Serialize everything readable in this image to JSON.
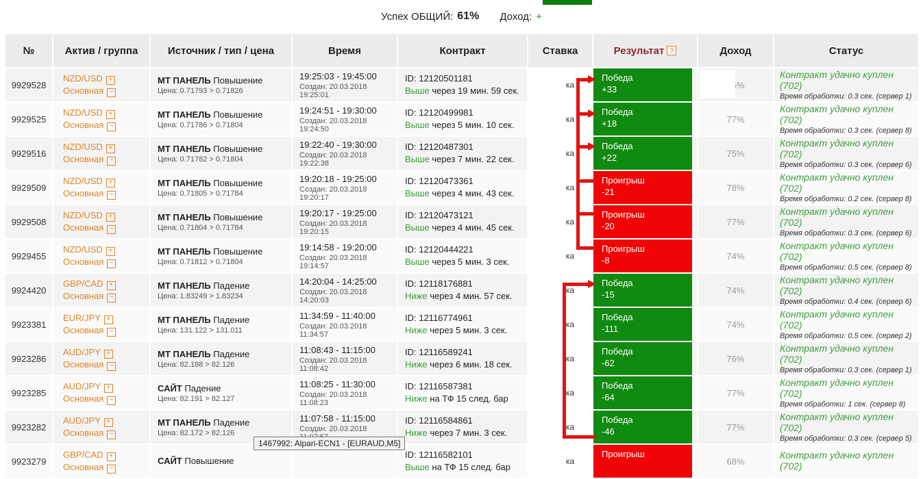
{
  "topbar": {
    "success_label": "Успех ОБЩИЙ:",
    "success_value": "61%",
    "income_label": "Доход:",
    "income_value": "+"
  },
  "icons": {
    "expand": "+",
    "collapse": "−",
    "help": "?"
  },
  "colors": {
    "win_green": "#108a10",
    "loss_red": "#ef0505",
    "link_orange": "#dd8427",
    "status_green": "#3f9e3f",
    "annotation_red": "#e31212",
    "result_header_maroon": "#8b2a2a"
  },
  "tooltip": {
    "text": "1467992: Alpari-ECN1 - [EURAUD,M5]"
  },
  "table": {
    "columns": [
      "№",
      "Актив / группа",
      "Источник / тип / цена",
      "Время",
      "Контракт",
      "Ставка",
      "Результат",
      "Доход",
      "Статус"
    ],
    "rows": [
      {
        "number": "9929528",
        "asset": "NZD/USD",
        "group": "Основная",
        "source": "МТ ПАНЕЛЬ",
        "move": "Повышение",
        "price": "Цена: 0.71793 > 0.71826",
        "time_range": "19:25:03 - 19:45:00",
        "created": "Создан: 20.03.2018 19:25:01",
        "contract_id": "ID: 12120501181",
        "direction": "Выше",
        "contract_tail": "через 19 мин. 59 сек.",
        "stake_fragment": "ка",
        "result_label": "Победа",
        "result_value": "+33",
        "result_kind": "win",
        "income": "75%",
        "income_overlay": true,
        "status": "Контракт удачно куплен (702)",
        "status_sub": "Время обработки: 0.3 сек. (сервер 1)"
      },
      {
        "number": "9929525",
        "asset": "NZD/USD",
        "group": "Основная",
        "source": "МТ ПАНЕЛЬ",
        "move": "Повышение",
        "price": "Цена: 0.71786 > 0.71804",
        "time_range": "19:24:51 - 19:30:00",
        "created": "Создан: 20.03.2018 19:24:50",
        "contract_id": "ID: 12120499981",
        "direction": "Выше",
        "contract_tail": "через 5 мин. 10 сек.",
        "stake_fragment": "ка",
        "result_label": "Победа",
        "result_value": "+18",
        "result_kind": "win",
        "income": "77%",
        "income_overlay": false,
        "status": "Контракт удачно куплен (702)",
        "status_sub": "Время обработки: 0.3 сек. (сервер 8)"
      },
      {
        "number": "9929516",
        "asset": "NZD/USD",
        "group": "Основная",
        "source": "МТ ПАНЕЛЬ",
        "move": "Повышение",
        "price": "Цена: 0.71782 > 0.71804",
        "time_range": "19:22:40 - 19:30:00",
        "created": "Создан: 20.03.2018 19:22:38",
        "contract_id": "ID: 12120487301",
        "direction": "Выше",
        "contract_tail": "через 7 мин. 22 сек.",
        "stake_fragment": "ка",
        "result_label": "Победа",
        "result_value": "+22",
        "result_kind": "win",
        "income": "75%",
        "income_overlay": false,
        "status": "Контракт удачно куплен (702)",
        "status_sub": "Время обработки: 0.3 сек. (сервер 6)"
      },
      {
        "number": "9929509",
        "asset": "NZD/USD",
        "group": "Основная",
        "source": "МТ ПАНЕЛЬ",
        "move": "Повышение",
        "price": "Цена: 0.71805 > 0.71784",
        "time_range": "19:20:18 - 19:25:00",
        "created": "Создан: 20.03.2018 19:20:17",
        "contract_id": "ID: 12120473361",
        "direction": "Выше",
        "contract_tail": "через 4 мин. 43 сек.",
        "stake_fragment": "ка",
        "result_label": "Проигрыш",
        "result_value": "-21",
        "result_kind": "loss",
        "income": "78%",
        "income_overlay": false,
        "status": "Контракт удачно куплен (702)",
        "status_sub": "Время обработки: 0.2 сек. (сервер 8)"
      },
      {
        "number": "9929508",
        "asset": "NZD/USD",
        "group": "Основная",
        "source": "МТ ПАНЕЛЬ",
        "move": "Повышение",
        "price": "Цена: 0.71804 > 0.71784",
        "time_range": "19:20:17 - 19:25:00",
        "created": "Создан: 20.03.2018 19:20:15",
        "contract_id": "ID: 12120473121",
        "direction": "Выше",
        "contract_tail": "через 4 мин. 45 сек.",
        "stake_fragment": "ка",
        "result_label": "Проигрыш",
        "result_value": "-20",
        "result_kind": "loss",
        "income": "77%",
        "income_overlay": false,
        "status": "Контракт удачно куплен (702)",
        "status_sub": "Время обработки: 0.3 сек. (сервер 6)"
      },
      {
        "number": "9929455",
        "asset": "NZD/USD",
        "group": "Основная",
        "source": "МТ ПАНЕЛЬ",
        "move": "Повышение",
        "price": "Цена: 0.71812 > 0.71804",
        "time_range": "19:14:58 - 19:20:00",
        "created": "Создан: 20.03.2018 19:14:57",
        "contract_id": "ID: 12120444221",
        "direction": "Выше",
        "contract_tail": "через 5 мин. 3 сек.",
        "stake_fragment": "ка",
        "result_label": "Проигрыш",
        "result_value": "-8",
        "result_kind": "loss",
        "income": "74%",
        "income_overlay": false,
        "status": "Контракт удачно куплен (702)",
        "status_sub": "Время обработки: 0.5 сек. (сервер 8)"
      },
      {
        "number": "9924420",
        "asset": "GBP/CAD",
        "group": "Основная",
        "source": "МТ ПАНЕЛЬ",
        "move": "Падение",
        "price": "Цена: 1.83249 > 1.83234",
        "time_range": "14:20:04 - 14:25:00",
        "created": "Создан: 20.03.2018 14:20:03",
        "contract_id": "ID: 12118176881",
        "direction": "Ниже",
        "contract_tail": "через 4 мин. 57 сек.",
        "stake_fragment": "ка",
        "result_label": "Победа",
        "result_value": "-15",
        "result_kind": "win",
        "income": "74%",
        "income_overlay": false,
        "status": "Контракт удачно куплен (702)",
        "status_sub": "Время обработки: 0.4 сек. (сервер 6)"
      },
      {
        "number": "9923381",
        "asset": "EUR/JPY",
        "group": "Основная",
        "source": "МТ ПАНЕЛЬ",
        "move": "Падение",
        "price": "Цена: 131.122 > 131.011",
        "time_range": "11:34:59 - 11:40:00",
        "created": "Создан: 20.03.2018 11:34:57",
        "contract_id": "ID: 12116774961",
        "direction": "Ниже",
        "contract_tail": "через 5 мин. 3 сек.",
        "stake_fragment": "ка",
        "result_label": "Победа",
        "result_value": "-111",
        "result_kind": "win",
        "income": "74%",
        "income_overlay": false,
        "status": "Контракт удачно куплен (702)",
        "status_sub": "Время обработки: 0.5 сек. (сервер 2)"
      },
      {
        "number": "9923286",
        "asset": "AUD/JPY",
        "group": "Основная",
        "source": "МТ ПАНЕЛЬ",
        "move": "Падение",
        "price": "Цена: 82.188 > 82.126",
        "time_range": "11:08:43 - 11:15:00",
        "created": "Создан: 20.03.2018 11:08:42",
        "contract_id": "ID: 12116589241",
        "direction": "Ниже",
        "contract_tail": "через 6 мин. 18 сек.",
        "stake_fragment": "ка",
        "result_label": "Победа",
        "result_value": "-62",
        "result_kind": "win",
        "income": "76%",
        "income_overlay": false,
        "status": "Контракт удачно куплен (702)",
        "status_sub": "Время обработки: 0.3 сек. (сервер 1)"
      },
      {
        "number": "9923285",
        "asset": "AUD/JPY",
        "group": "Основная",
        "source": "САЙТ",
        "move": "Падение",
        "price": "Цена: 82.191 > 82.127",
        "time_range": "11:08:25 - 11:30:00",
        "created": "Создан: 20.03.2018 11:08:23",
        "contract_id": "ID: 12116587381",
        "direction": "Ниже",
        "contract_tail": "на ТФ 15 след. бар",
        "stake_fragment": "ка",
        "result_label": "Победа",
        "result_value": "-64",
        "result_kind": "win",
        "income": "77%",
        "income_overlay": false,
        "status": "Контракт удачно куплен (702)",
        "status_sub": "Время обработки: 1 сек. (сервер 8)"
      },
      {
        "number": "9923282",
        "asset": "AUD/JPY",
        "group": "Основная",
        "source": "МТ ПАНЕЛЬ",
        "move": "Падение",
        "price": "Цена: 82.172 > 82.126",
        "time_range": "11:07:58 - 11:15:00",
        "created": "Создан: 20.03.2018 11:07:57",
        "contract_id": "ID: 12116584861",
        "direction": "Ниже",
        "contract_tail": "через 7 мин. 3 сек.",
        "stake_fragment": "ка",
        "result_label": "Победа",
        "result_value": "-46",
        "result_kind": "win",
        "income": "77%",
        "income_overlay": false,
        "status": "Контракт удачно куплен (702)",
        "status_sub": "Время обработки: 0.3 сек. (сервер 5)"
      },
      {
        "number": "9923279",
        "asset": "GBP/CAD",
        "group": "Основная",
        "source": "САЙТ",
        "move": "Повышение",
        "price": "",
        "time_range": "",
        "created": "",
        "contract_id": "ID: 12116582101",
        "direction": "Выше",
        "contract_tail": "на ТФ 15 след. бар",
        "stake_fragment": "ка",
        "result_label": "Проигрыш",
        "result_value": "",
        "result_kind": "loss",
        "income": "68%",
        "income_overlay": false,
        "status": "Контракт удачно куплен (702)",
        "status_sub": ""
      }
    ]
  }
}
